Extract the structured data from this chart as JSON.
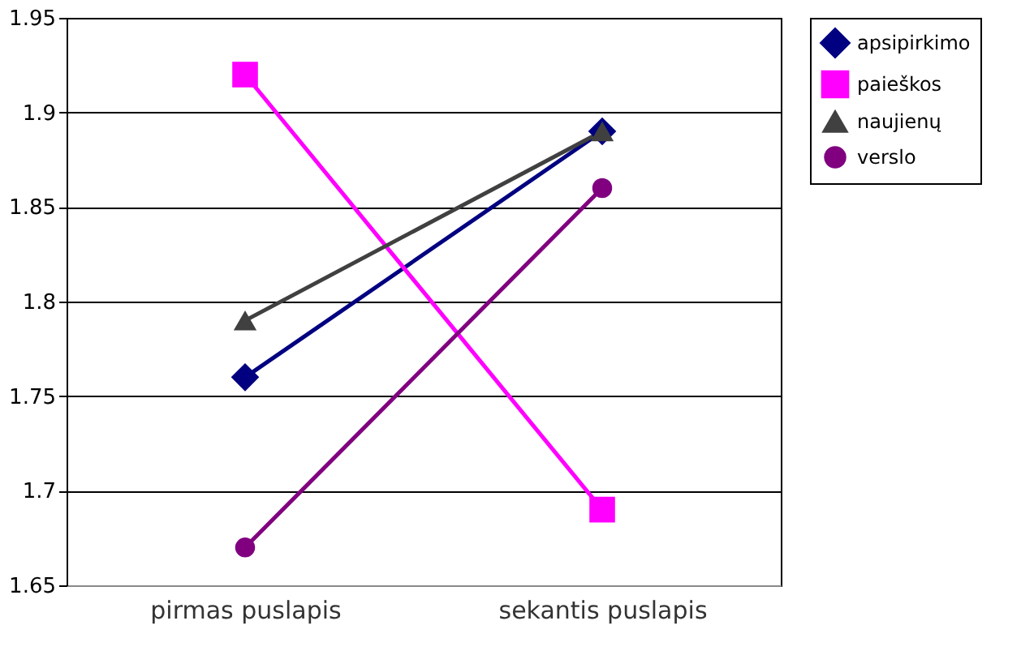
{
  "chart_data": {
    "type": "line",
    "categories": [
      "pirmas puslapis",
      "sekantis puslapis"
    ],
    "series": [
      {
        "name": "apsipirkimo",
        "color": "#000080",
        "marker": "diamond",
        "values": [
          1.76,
          1.89
        ]
      },
      {
        "name": "paieškos",
        "color": "#ff00ff",
        "marker": "square",
        "values": [
          1.92,
          1.69
        ]
      },
      {
        "name": "naujienų",
        "color": "#404040",
        "marker": "triangle",
        "values": [
          1.79,
          1.89
        ]
      },
      {
        "name": "verslo",
        "color": "#800080",
        "marker": "circle",
        "values": [
          1.67,
          1.86
        ]
      }
    ],
    "ylim": [
      1.65,
      1.95
    ],
    "yticks": [
      1.65,
      1.7,
      1.75,
      1.8,
      1.85,
      1.9,
      1.95
    ],
    "grid": "y",
    "legend": "right"
  }
}
